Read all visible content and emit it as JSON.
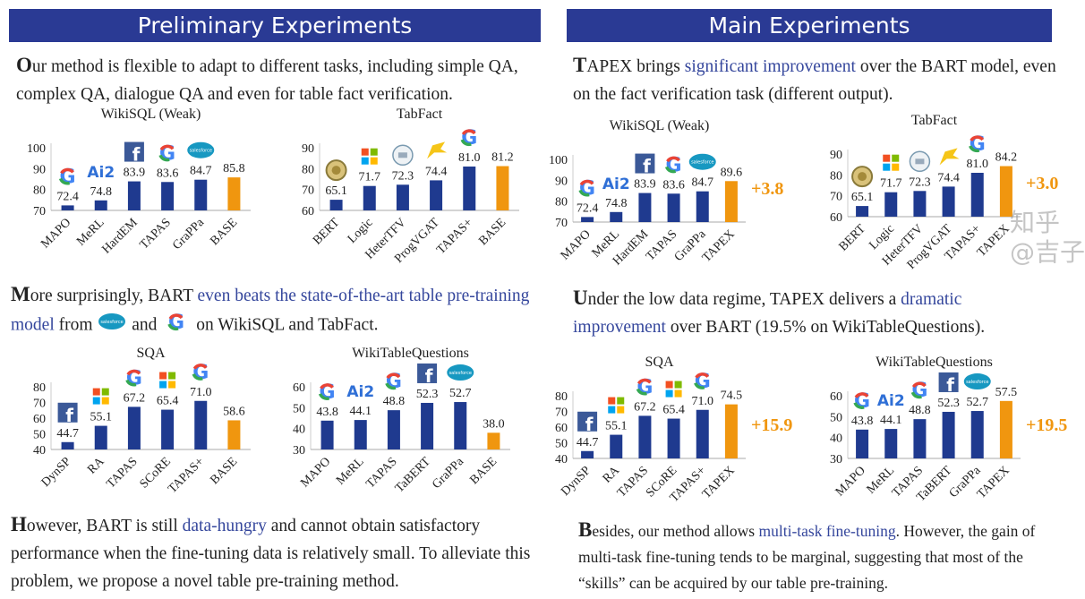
{
  "left": {
    "header": "Preliminary Experiments",
    "p1": [
      {
        "cap": "O"
      },
      {
        "t": "ur method is flexible to adapt to different tasks, including simple QA, complex QA, dialogue QA and even for table fact verification."
      }
    ],
    "p2": [
      {
        "cap": "M"
      },
      {
        "t": "ore surprisingly, BART "
      },
      {
        "t": "even beats the state-of-the-art table pre-training model",
        "hl": true
      },
      {
        "t": " from "
      },
      {
        "logo": "salesforce"
      },
      {
        "t": " and "
      },
      {
        "logo": "google"
      },
      {
        "t": " on WikiSQL and TabFact."
      }
    ],
    "p3": [
      {
        "cap": "H"
      },
      {
        "t": "owever, BART is still "
      },
      {
        "t": "data-hungry",
        "hl": true
      },
      {
        "t": " and cannot obtain satisfactory performance when the fine-tuning data is relatively small. To alleviate this problem, we propose a novel table pre-training method."
      }
    ]
  },
  "right": {
    "header": "Main Experiments",
    "p1": [
      {
        "cap": "T"
      },
      {
        "t": "APEX brings "
      },
      {
        "t": "significant improvement",
        "hl": true
      },
      {
        "t": " over the BART model, even on the fact verification task (different output)."
      }
    ],
    "p2": [
      {
        "cap": "U"
      },
      {
        "t": "nder the low data regime, TAPEX delivers a "
      },
      {
        "t": "dramatic improvement",
        "hl": true
      },
      {
        "t": " over BART (19.5% on WikiTableQuestions)."
      }
    ],
    "p3": [
      {
        "cap": "B"
      },
      {
        "t": "esides, our method allows "
      },
      {
        "t": "multi-task fine-tuning",
        "hl": true
      },
      {
        "t": ". However, the gain of multi-task fine-tuning tends to be marginal, suggesting that most of the “skills” can be acquired by our table pre-training."
      }
    ]
  },
  "watermark": "知乎 @吉子",
  "colors": {
    "bar": "#1f3a8f",
    "highlight": "#f0960f",
    "header": "#2a3a94",
    "link": "#34469c"
  },
  "chart_data": [
    {
      "type": "bar",
      "title": "WikiSQL (Weak)",
      "categories": [
        "MAPO",
        "MeRL",
        "HardEM",
        "TAPAS",
        "GraPPa",
        "BASE"
      ],
      "values": [
        72.4,
        74.8,
        83.9,
        83.6,
        84.7,
        85.8
      ],
      "labels": [
        "72.4",
        "74.8",
        "83.9",
        "83.6",
        "84.7",
        "85.8"
      ],
      "ylim": [
        70,
        100
      ],
      "yticks": [
        70,
        80,
        90,
        100
      ],
      "highlight": 5,
      "logos": [
        "google",
        "ai2",
        "facebook",
        "google",
        "salesforce",
        ""
      ]
    },
    {
      "type": "bar",
      "title": "TabFact",
      "categories": [
        "BERT",
        "Logic",
        "HeterTFV",
        "ProgVGAT",
        "TAPAS+",
        "BASE"
      ],
      "values": [
        65.1,
        71.7,
        72.3,
        74.4,
        81.0,
        81.2
      ],
      "labels": [
        "65.1",
        "71.7",
        "72.3",
        "74.4",
        "81.0",
        "81.2"
      ],
      "ylim": [
        60,
        90
      ],
      "yticks": [
        60,
        70,
        80,
        90
      ],
      "highlight": 5,
      "logos": [
        "seal",
        "microsoft",
        "seal2",
        "dog",
        "google",
        ""
      ]
    },
    {
      "type": "bar",
      "title": "SQA",
      "categories": [
        "DynSP",
        "RA",
        "TAPAS",
        "SCoRE",
        "TAPAS+",
        "BASE"
      ],
      "values": [
        44.7,
        55.1,
        67.2,
        65.4,
        71.0,
        58.6
      ],
      "labels": [
        "44.7",
        "55.1",
        "67.2",
        "65.4",
        "71.0",
        "58.6"
      ],
      "ylim": [
        40,
        80
      ],
      "yticks": [
        40,
        50,
        60,
        70,
        80
      ],
      "highlight": 5,
      "logos": [
        "facebook",
        "microsoft",
        "google",
        "microsoft",
        "google",
        ""
      ]
    },
    {
      "type": "bar",
      "title": "WikiTableQuestions",
      "categories": [
        "MAPO",
        "MeRL",
        "TAPAS",
        "TaBERT",
        "GraPPa",
        "BASE"
      ],
      "values": [
        43.8,
        44.1,
        48.8,
        52.3,
        52.7,
        38.0
      ],
      "labels": [
        "43.8",
        "44.1",
        "48.8",
        "52.3",
        "52.7",
        "38.0"
      ],
      "ylim": [
        30,
        60
      ],
      "yticks": [
        30,
        40,
        50,
        60
      ],
      "highlight": 5,
      "logos": [
        "google",
        "ai2",
        "google",
        "facebook",
        "salesforce",
        ""
      ]
    },
    {
      "type": "bar",
      "title": "WikiSQL (Weak)",
      "categories": [
        "MAPO",
        "MeRL",
        "HardEM",
        "TAPAS",
        "GraPPa",
        "TAPEX"
      ],
      "values": [
        72.4,
        74.8,
        83.9,
        83.6,
        84.7,
        89.6
      ],
      "labels": [
        "72.4",
        "74.8",
        "83.9",
        "83.6",
        "84.7",
        "89.6"
      ],
      "ylim": [
        70,
        100
      ],
      "yticks": [
        70,
        80,
        90,
        100
      ],
      "highlight": 5,
      "gain": "+3.8",
      "logos": [
        "google",
        "ai2",
        "facebook",
        "google",
        "salesforce",
        ""
      ]
    },
    {
      "type": "bar",
      "title": "TabFact",
      "categories": [
        "BERT",
        "Logic",
        "HeterTFV",
        "ProgVGAT",
        "TAPAS+",
        "TAPEX"
      ],
      "values": [
        65.1,
        71.7,
        72.3,
        74.4,
        81.0,
        84.2
      ],
      "labels": [
        "65.1",
        "71.7",
        "72.3",
        "74.4",
        "81.0",
        "84.2"
      ],
      "ylim": [
        60,
        90
      ],
      "yticks": [
        60,
        70,
        80,
        90
      ],
      "highlight": 5,
      "gain": "+3.0",
      "logos": [
        "seal",
        "microsoft",
        "seal2",
        "dog",
        "google",
        ""
      ]
    },
    {
      "type": "bar",
      "title": "SQA",
      "categories": [
        "DynSP",
        "RA",
        "TAPAS",
        "SCoRE",
        "TAPAS+",
        "TAPEX"
      ],
      "values": [
        44.7,
        55.1,
        67.2,
        65.4,
        71.0,
        74.5
      ],
      "labels": [
        "44.7",
        "55.1",
        "67.2",
        "65.4",
        "71.0",
        "74.5"
      ],
      "ylim": [
        40,
        80
      ],
      "yticks": [
        40,
        50,
        60,
        70,
        80
      ],
      "highlight": 5,
      "gain": "+15.9",
      "logos": [
        "facebook",
        "microsoft",
        "google",
        "microsoft",
        "google",
        ""
      ]
    },
    {
      "type": "bar",
      "title": "WikiTableQuestions",
      "categories": [
        "MAPO",
        "MeRL",
        "TAPAS",
        "TaBERT",
        "GraPPa",
        "TAPEX"
      ],
      "values": [
        43.8,
        44.1,
        48.8,
        52.3,
        52.7,
        57.5
      ],
      "labels": [
        "43.8",
        "44.1",
        "48.8",
        "52.3",
        "52.7",
        "57.5"
      ],
      "ylim": [
        30,
        60
      ],
      "yticks": [
        30,
        40,
        50,
        60
      ],
      "highlight": 5,
      "gain": "+19.5",
      "logos": [
        "google",
        "ai2",
        "google",
        "facebook",
        "salesforce",
        ""
      ]
    }
  ]
}
